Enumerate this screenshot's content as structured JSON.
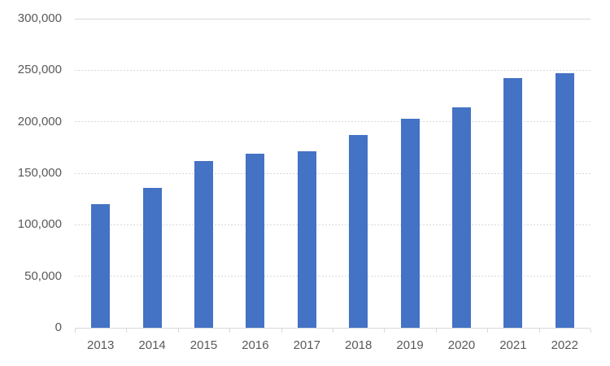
{
  "chart_data": {
    "type": "bar",
    "title": "",
    "xlabel": "",
    "ylabel": "",
    "categories": [
      "2013",
      "2014",
      "2015",
      "2016",
      "2017",
      "2018",
      "2019",
      "2020",
      "2021",
      "2022"
    ],
    "values": [
      120000,
      136000,
      162000,
      169000,
      171000,
      187000,
      203000,
      214000,
      242000,
      247000
    ],
    "ylim": [
      0,
      300000
    ],
    "y_ticks": [
      0,
      50000,
      100000,
      150000,
      200000,
      250000,
      300000
    ],
    "y_tick_labels": [
      "0",
      "50,000",
      "100,000",
      "150,000",
      "200,000",
      "250,000",
      "300,000"
    ],
    "grid": true,
    "legend": false,
    "colors": {
      "bar": "#4472C4",
      "gridline": "#D9D9D9",
      "axis": "#D9D9D9",
      "tick_label": "#595959"
    }
  }
}
